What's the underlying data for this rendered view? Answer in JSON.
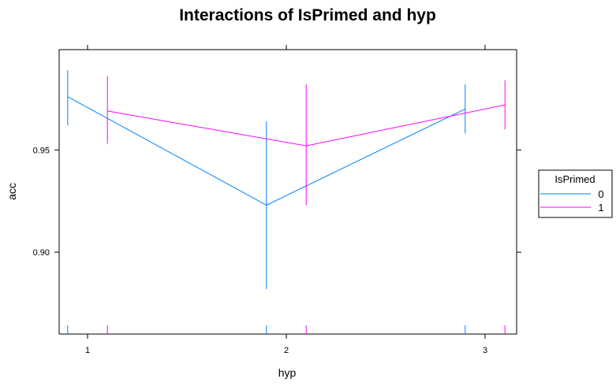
{
  "chart_data": {
    "type": "line",
    "title": "Interactions of IsPrimed and hyp",
    "xlabel": "hyp",
    "ylabel": "acc",
    "x_ticks": [
      "1",
      "2",
      "3"
    ],
    "y_ticks": [
      "0.90",
      "0.95"
    ],
    "ylim": [
      0.86,
      0.999
    ],
    "grid": false,
    "legend": {
      "title": "IsPrimed",
      "placement": "right",
      "entries": [
        "0",
        "1"
      ]
    },
    "series": [
      {
        "name": "0",
        "color": "#0080ff",
        "x": [
          0.9,
          1.9,
          2.9
        ],
        "y": [
          0.976,
          0.923,
          0.97
        ],
        "lower": [
          0.962,
          0.882,
          0.958
        ],
        "upper": [
          0.989,
          0.964,
          0.982
        ]
      },
      {
        "name": "1",
        "color": "#ff00ff",
        "x": [
          1.1,
          2.1,
          3.1
        ],
        "y": [
          0.969,
          0.952,
          0.972
        ],
        "lower": [
          0.953,
          0.923,
          0.96
        ],
        "upper": [
          0.986,
          0.982,
          0.984
        ]
      }
    ]
  }
}
